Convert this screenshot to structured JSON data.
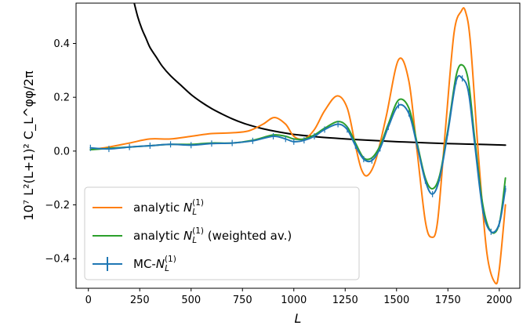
{
  "chart_data": {
    "type": "line",
    "xlabel": "L",
    "ylabel": "10⁷ L²(L+1)² C_L^φφ/2π",
    "xlim": [
      -60,
      2100
    ],
    "ylim": [
      -0.51,
      0.55
    ],
    "xticks": [
      0,
      250,
      500,
      750,
      1000,
      1250,
      1500,
      1750,
      2000
    ],
    "yticks": [
      -0.4,
      -0.2,
      0.0,
      0.2,
      0.4
    ],
    "xtick_labels": [
      "0",
      "250",
      "500",
      "750",
      "1000",
      "1250",
      "1500",
      "1750",
      "2000"
    ],
    "ytick_labels": [
      "−0.4",
      "−0.2",
      "0.0",
      "0.2",
      "0.4"
    ],
    "grid": false,
    "legend_position": "lower-left",
    "series": [
      {
        "name": "analytic N_L^(1)",
        "legend_main": "analytic ",
        "legend_sub": "L",
        "legend_sup": "(1)",
        "legend_suffix": "",
        "color": "#ff7f0e",
        "style": "line",
        "x": [
          10,
          100,
          200,
          300,
          400,
          500,
          600,
          700,
          780,
          850,
          905,
          960,
          1000,
          1050,
          1100,
          1150,
          1210,
          1260,
          1300,
          1330,
          1360,
          1400,
          1450,
          1510,
          1560,
          1600,
          1640,
          1670,
          1700,
          1740,
          1780,
          1815,
          1835,
          1860,
          1900,
          1940,
          1980,
          2000,
          2030
        ],
        "y": [
          0.005,
          0.015,
          0.03,
          0.045,
          0.045,
          0.055,
          0.065,
          0.068,
          0.075,
          0.1,
          0.125,
          0.1,
          0.055,
          0.045,
          0.08,
          0.15,
          0.205,
          0.16,
          0.02,
          -0.07,
          -0.09,
          -0.03,
          0.13,
          0.34,
          0.26,
          0.0,
          -0.26,
          -0.32,
          -0.26,
          0.1,
          0.44,
          0.52,
          0.52,
          0.4,
          -0.03,
          -0.38,
          -0.49,
          -0.44,
          -0.2
        ]
      },
      {
        "name": "analytic N_L^(1) (weighted av.)",
        "legend_main": "analytic ",
        "legend_sub": "L",
        "legend_sup": "(1)",
        "legend_suffix": " (weighted av.)",
        "color": "#2ca02c",
        "style": "line",
        "x": [
          10,
          100,
          200,
          300,
          400,
          500,
          600,
          700,
          800,
          900,
          960,
          1000,
          1050,
          1100,
          1150,
          1215,
          1260,
          1300,
          1340,
          1380,
          1420,
          1460,
          1510,
          1560,
          1600,
          1640,
          1675,
          1710,
          1750,
          1790,
          1820,
          1850,
          1880,
          1920,
          1960,
          2000,
          2030
        ],
        "y": [
          0.005,
          0.01,
          0.015,
          0.02,
          0.025,
          0.025,
          0.03,
          0.03,
          0.04,
          0.06,
          0.055,
          0.045,
          0.045,
          0.06,
          0.085,
          0.11,
          0.09,
          0.03,
          -0.025,
          -0.025,
          0.02,
          0.1,
          0.19,
          0.16,
          0.03,
          -0.1,
          -0.14,
          -0.09,
          0.08,
          0.28,
          0.32,
          0.26,
          0.05,
          -0.2,
          -0.3,
          -0.27,
          -0.1
        ]
      },
      {
        "name": "MC-N_L^(1)",
        "legend_main": "MC-",
        "legend_sub": "L",
        "legend_sup": "(1)",
        "legend_suffix": "",
        "color": "#1f77b4",
        "style": "errorbar",
        "x": [
          10,
          100,
          200,
          300,
          400,
          500,
          600,
          700,
          800,
          900,
          960,
          1000,
          1050,
          1100,
          1150,
          1215,
          1260,
          1300,
          1340,
          1380,
          1420,
          1460,
          1510,
          1560,
          1600,
          1640,
          1675,
          1710,
          1750,
          1790,
          1820,
          1850,
          1880,
          1920,
          1960,
          2000,
          2030
        ],
        "y": [
          0.012,
          0.008,
          0.015,
          0.02,
          0.025,
          0.022,
          0.028,
          0.03,
          0.038,
          0.055,
          0.045,
          0.035,
          0.04,
          0.055,
          0.08,
          0.1,
          0.08,
          0.02,
          -0.03,
          -0.035,
          0.01,
          0.09,
          0.17,
          0.14,
          0.02,
          -0.11,
          -0.16,
          -0.1,
          0.07,
          0.26,
          0.27,
          0.22,
          0.03,
          -0.22,
          -0.3,
          -0.27,
          -0.14
        ]
      },
      {
        "name": "",
        "color": "#000000",
        "style": "line",
        "x": [
          220,
          240,
          260,
          280,
          300,
          330,
          360,
          400,
          450,
          500,
          550,
          600,
          650,
          700,
          750,
          800,
          850,
          900,
          950,
          1000,
          1100,
          1200,
          1300,
          1400,
          1500,
          1600,
          1700,
          1800,
          1900,
          2000,
          2030
        ],
        "y": [
          0.56,
          0.5,
          0.455,
          0.42,
          0.385,
          0.35,
          0.315,
          0.28,
          0.245,
          0.21,
          0.182,
          0.158,
          0.138,
          0.12,
          0.105,
          0.093,
          0.083,
          0.075,
          0.068,
          0.062,
          0.054,
          0.048,
          0.043,
          0.039,
          0.035,
          0.032,
          0.029,
          0.027,
          0.025,
          0.023,
          0.022
        ]
      }
    ]
  }
}
